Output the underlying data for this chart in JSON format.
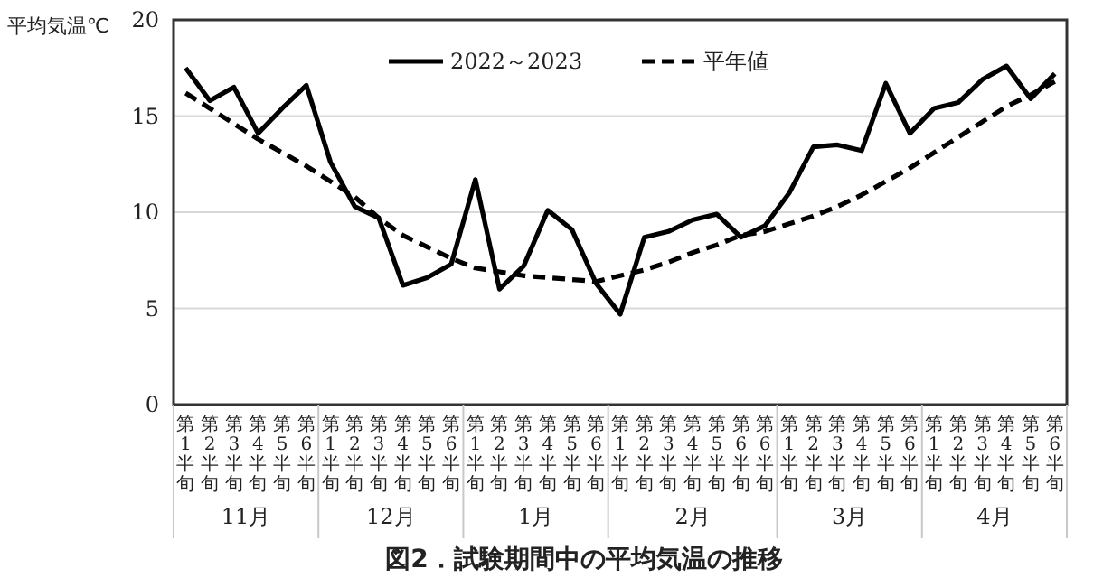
{
  "chart_data": {
    "type": "line",
    "title": "図2．試験期間中の平均気温の推移",
    "ylabel": "平均気温℃",
    "categories": [
      "第1半旬",
      "第2半旬",
      "第3半旬",
      "第4半旬",
      "第5半旬",
      "第6半旬",
      "第1半旬",
      "第2半旬",
      "第3半旬",
      "第4半旬",
      "第5半旬",
      "第6半旬",
      "第1半旬",
      "第2半旬",
      "第3半旬",
      "第4半旬",
      "第5半旬",
      "第6半旬",
      "第1半旬",
      "第2半旬",
      "第3半旬",
      "第4半旬",
      "第5半旬",
      "第6半旬",
      "第6半旬",
      "第1半旬",
      "第2半旬",
      "第3半旬",
      "第4半旬",
      "第5半旬",
      "第6半旬",
      "第1半旬",
      "第2半旬",
      "第3半旬",
      "第4半旬",
      "第5半旬",
      "第6半旬"
    ],
    "annotations": [
      "11月",
      "12月",
      "1月",
      "2月",
      "3月",
      "4月"
    ],
    "series": [
      {
        "name": "2022～2023",
        "color": "#000000",
        "line_style": "solid",
        "values": [
          17.5,
          15.8,
          16.5,
          14.1,
          15.4,
          16.6,
          12.6,
          10.3,
          9.7,
          6.2,
          6.6,
          7.3,
          11.7,
          6.0,
          7.2,
          10.1,
          9.1,
          6.3,
          4.7,
          8.7,
          9.0,
          9.6,
          9.9,
          8.7,
          9.3,
          11.0,
          13.4,
          13.5,
          13.2,
          16.7,
          14.1,
          15.4,
          15.7,
          16.9,
          17.6,
          15.9,
          17.2
        ]
      },
      {
        "name": "平年値",
        "color": "#000000",
        "line_style": "dashed",
        "values": [
          16.2,
          15.4,
          14.6,
          13.8,
          13.1,
          12.4,
          11.6,
          10.8,
          9.7,
          8.8,
          8.2,
          7.6,
          7.1,
          6.9,
          6.7,
          6.6,
          6.5,
          6.4,
          6.7,
          7.0,
          7.4,
          7.9,
          8.3,
          8.8,
          9.0,
          9.4,
          9.8,
          10.3,
          10.9,
          11.6,
          12.3,
          13.1,
          13.9,
          14.7,
          15.5,
          16.1,
          16.8
        ]
      }
    ],
    "ylim": [
      0,
      20
    ],
    "yticks": [
      0,
      5,
      10,
      15,
      20
    ],
    "grid": "y",
    "legend": "top",
    "marker": "none"
  }
}
